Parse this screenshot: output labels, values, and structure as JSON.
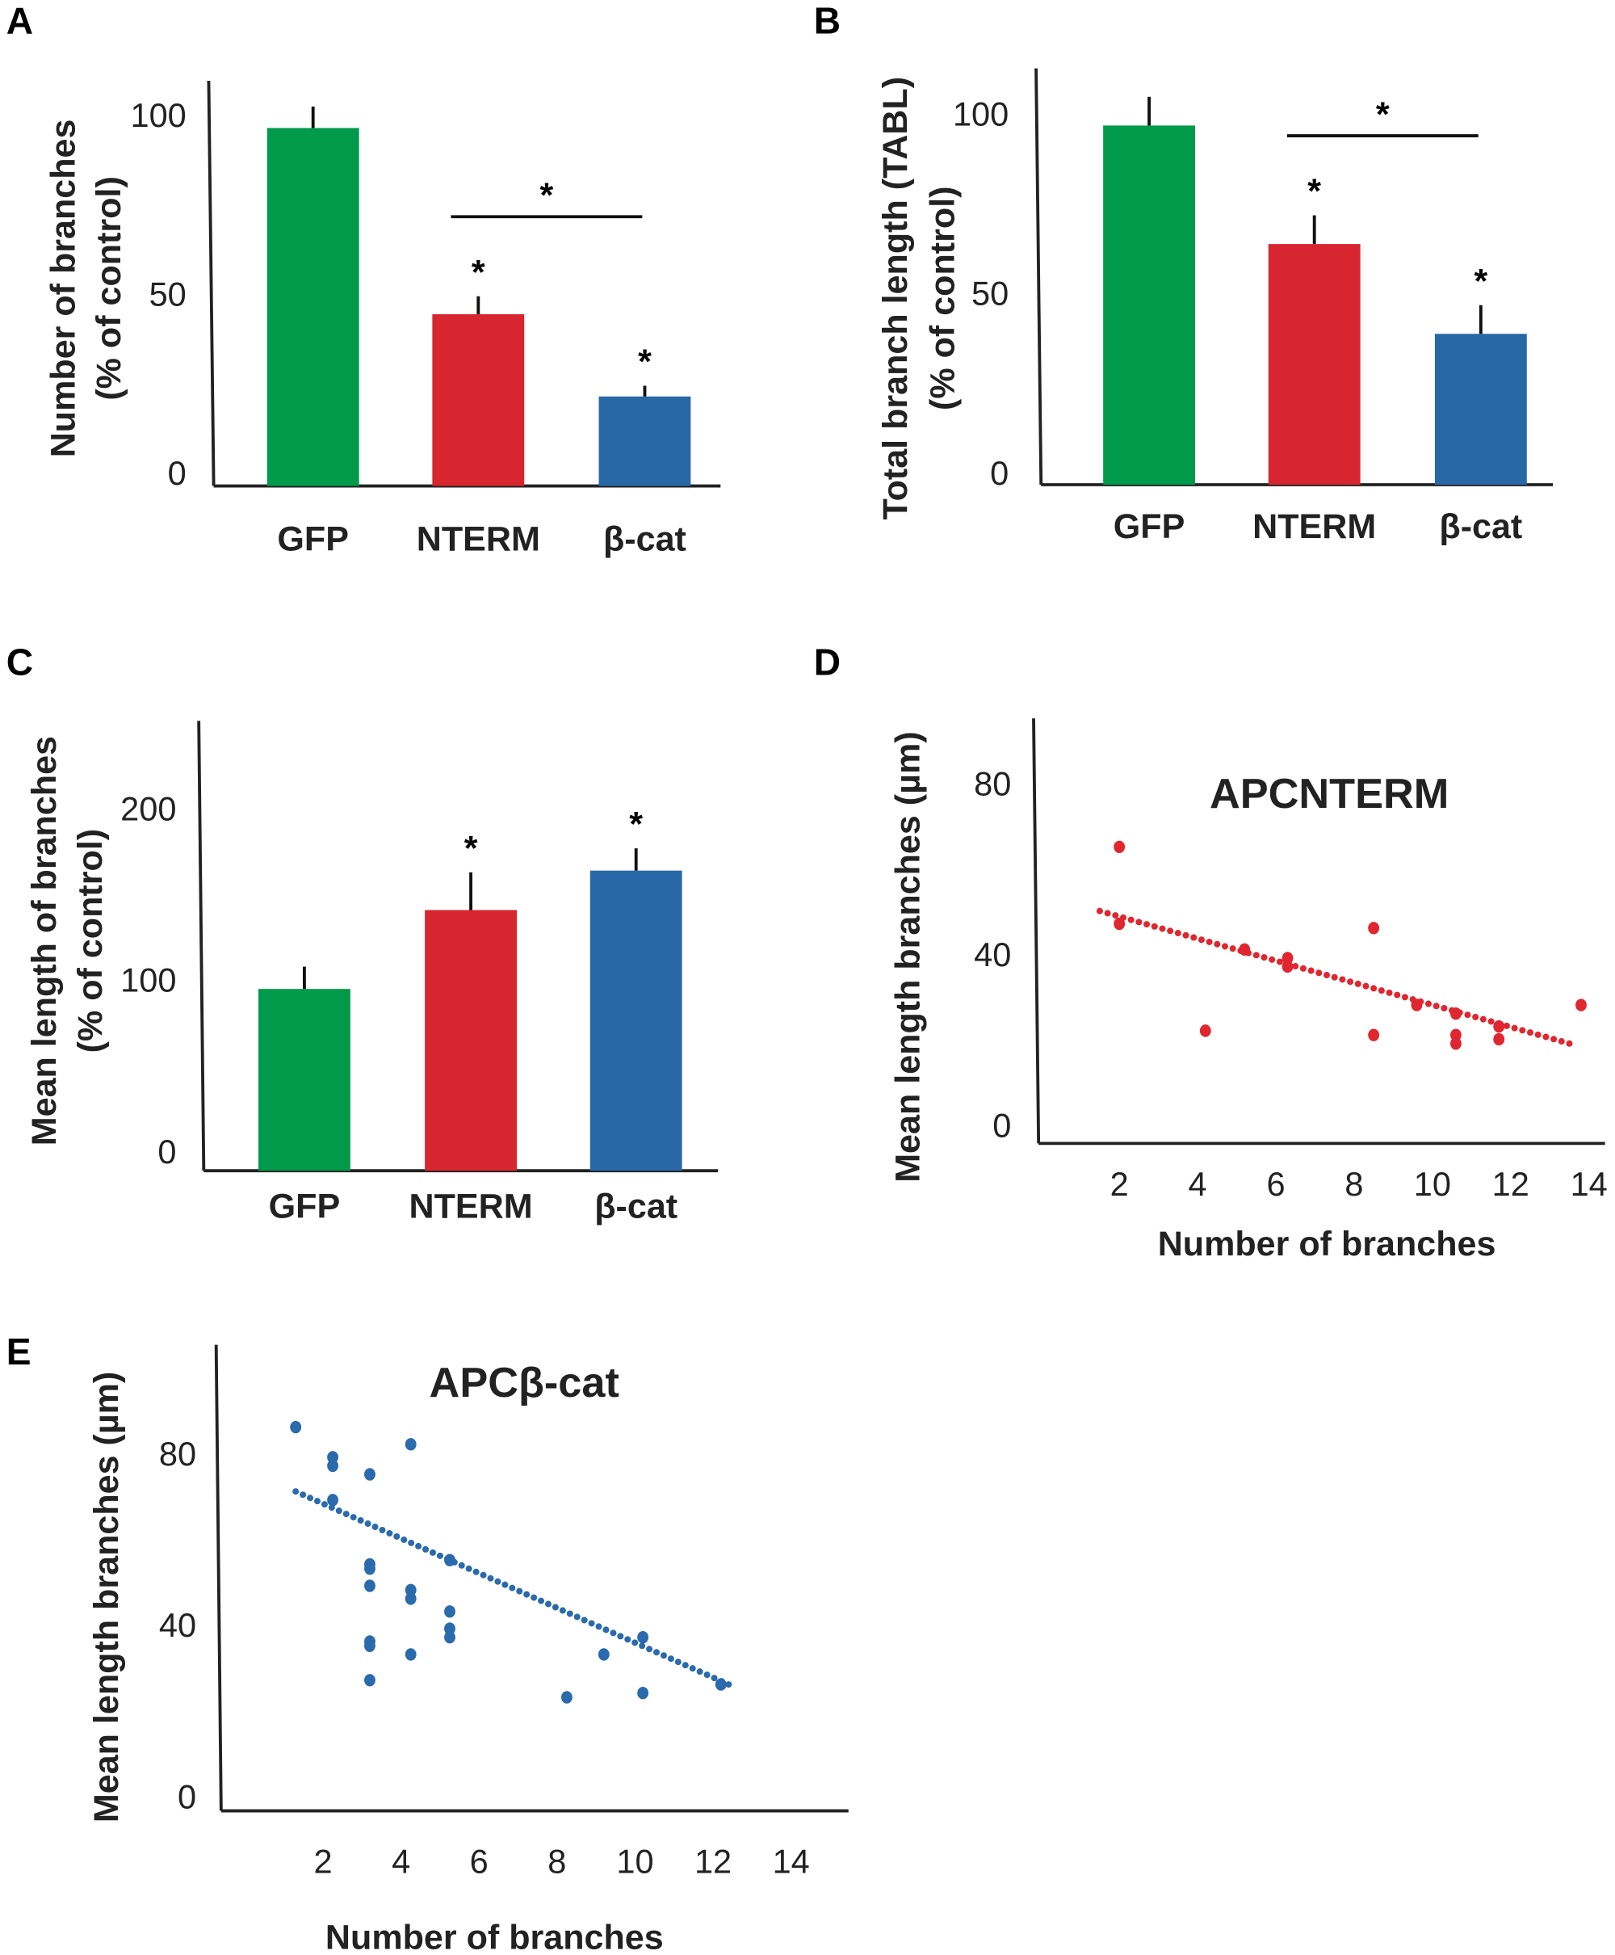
{
  "chart_data": [
    {
      "panel": "A",
      "type": "bar",
      "title": "",
      "ylabel_line1": "Number of branches",
      "ylabel_line2": "(% of control)",
      "categories": [
        "GFP",
        "NTERM",
        "β-cat"
      ],
      "values": [
        100,
        48,
        25
      ],
      "errors": [
        6,
        5,
        3
      ],
      "colors": [
        "#009a4a",
        "#d7262f",
        "#2868a6"
      ],
      "yticks": [
        "0",
        "50",
        "100"
      ],
      "ytick_values": [
        0,
        50,
        100
      ],
      "ylim": [
        0,
        115
      ],
      "stars": [
        "",
        "*",
        "*"
      ],
      "bracket": {
        "from": 1,
        "to": 2,
        "label": "*"
      }
    },
    {
      "panel": "B",
      "type": "bar",
      "title": "",
      "ylabel_line1": "Total branch length (TABL)",
      "ylabel_line2": "(% of control)",
      "categories": [
        "GFP",
        "NTERM",
        "β-cat"
      ],
      "values": [
        100,
        67,
        42
      ],
      "errors": [
        8,
        8,
        8
      ],
      "colors": [
        "#009a4a",
        "#d7262f",
        "#2868a6"
      ],
      "yticks": [
        "0",
        "50",
        "100"
      ],
      "ytick_values": [
        0,
        50,
        100
      ],
      "ylim": [
        0,
        115
      ],
      "stars": [
        "",
        "*",
        "*"
      ],
      "bracket": {
        "from": 1,
        "to": 2,
        "label": "*"
      }
    },
    {
      "panel": "C",
      "type": "bar",
      "title": "",
      "ylabel_line1": "Mean length of branches",
      "ylabel_line2": "(% of control)",
      "categories": [
        "GFP",
        "NTERM",
        "β-cat"
      ],
      "values": [
        106,
        152,
        175
      ],
      "errors": [
        13,
        22,
        13
      ],
      "colors": [
        "#009a4a",
        "#d7262f",
        "#2868a6"
      ],
      "yticks": [
        "0",
        "100",
        "200"
      ],
      "ytick_values": [
        0,
        100,
        200
      ],
      "ylim": [
        0,
        250
      ],
      "stars": [
        "",
        "*",
        "*"
      ],
      "bracket": null
    },
    {
      "panel": "D",
      "type": "scatter",
      "title": "APCNTERM",
      "xlabel": "Number of branches",
      "ylabel": "Mean length branches (µm)",
      "xticks": [
        "2",
        "4",
        "6",
        "8",
        "10",
        "12",
        "14"
      ],
      "xtick_values": [
        2,
        4,
        6,
        8,
        10,
        12,
        14
      ],
      "yticks": [
        "0",
        "40",
        "80"
      ],
      "ytick_values": [
        0,
        40,
        80
      ],
      "color": "#e0262e",
      "points": [
        [
          2,
          65
        ],
        [
          2,
          47
        ],
        [
          4.2,
          22
        ],
        [
          5.2,
          41
        ],
        [
          6.3,
          39
        ],
        [
          6.3,
          37
        ],
        [
          8.5,
          46
        ],
        [
          8.5,
          21
        ],
        [
          9.6,
          28
        ],
        [
          10.6,
          26
        ],
        [
          10.6,
          21
        ],
        [
          10.6,
          19
        ],
        [
          11.7,
          23
        ],
        [
          11.7,
          20
        ],
        [
          13.8,
          28
        ]
      ],
      "trendline": [
        [
          1.5,
          50
        ],
        [
          13.5,
          19
        ]
      ]
    },
    {
      "panel": "E",
      "type": "scatter",
      "title": "APCβ-cat",
      "xlabel": "Number of branches",
      "ylabel": "Mean length branches (µm)",
      "xticks": [
        "2",
        "4",
        "6",
        "8",
        "10",
        "12",
        "14"
      ],
      "xtick_values": [
        2,
        4,
        6,
        8,
        10,
        12,
        14
      ],
      "yticks": [
        "0",
        "40",
        "80"
      ],
      "ytick_values": [
        0,
        40,
        80
      ],
      "color": "#2a6aad",
      "points": [
        [
          1.3,
          86
        ],
        [
          2.25,
          79
        ],
        [
          2.25,
          77
        ],
        [
          2.25,
          69
        ],
        [
          3.2,
          75
        ],
        [
          3.2,
          54
        ],
        [
          3.2,
          53
        ],
        [
          3.2,
          49
        ],
        [
          3.2,
          36
        ],
        [
          3.2,
          35
        ],
        [
          3.2,
          27
        ],
        [
          4.25,
          82
        ],
        [
          4.25,
          48
        ],
        [
          4.25,
          46
        ],
        [
          4.25,
          33
        ],
        [
          5.25,
          55
        ],
        [
          5.25,
          43
        ],
        [
          5.25,
          39
        ],
        [
          5.25,
          37
        ],
        [
          8.25,
          23
        ],
        [
          9.2,
          33
        ],
        [
          10.2,
          37
        ],
        [
          10.2,
          24
        ],
        [
          12.2,
          26
        ]
      ],
      "trendline": [
        [
          1.3,
          71
        ],
        [
          12.4,
          26
        ]
      ]
    }
  ]
}
